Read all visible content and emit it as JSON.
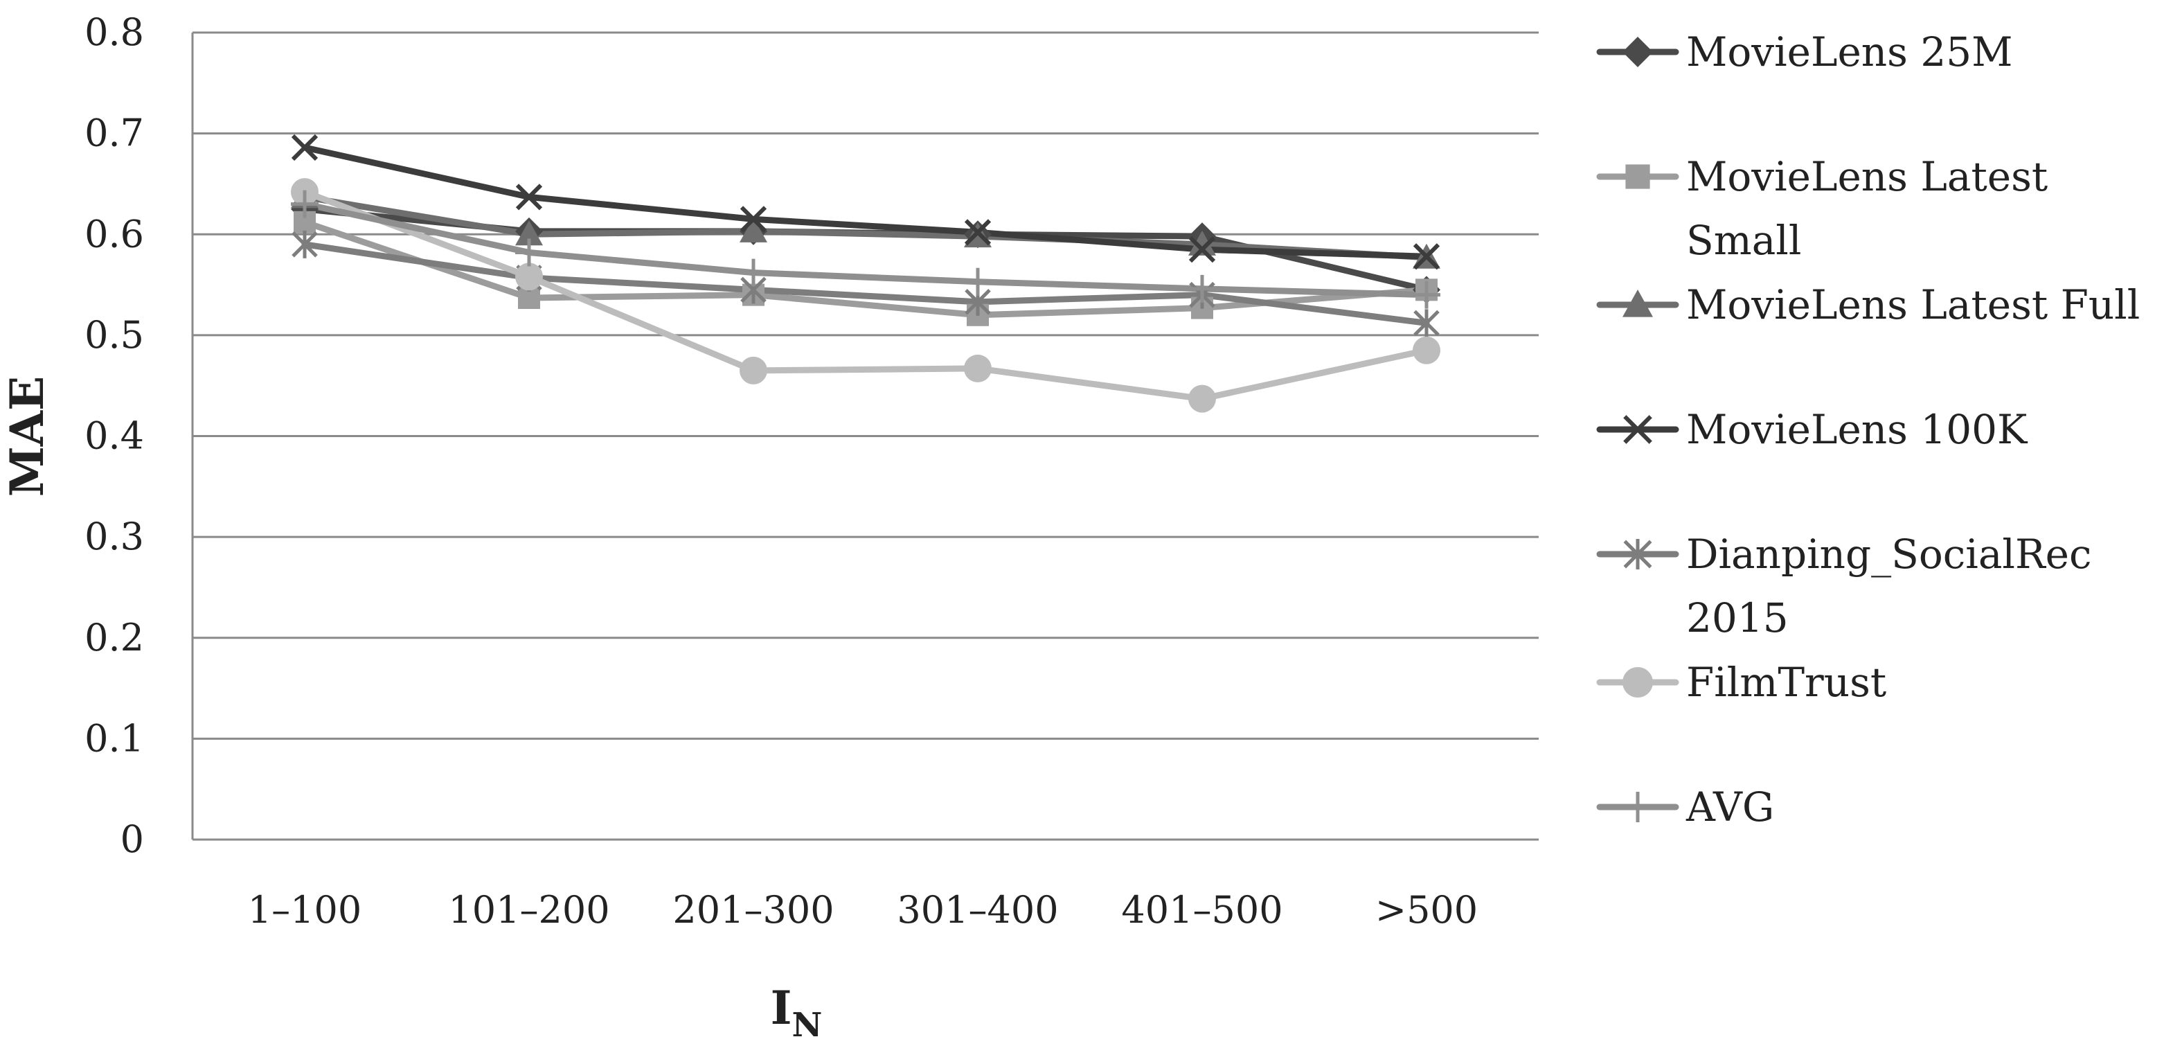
{
  "chart_data": {
    "type": "line",
    "title": "",
    "xlabel": "I",
    "xlabel_subscript": "N",
    "ylabel": "MAE",
    "ylim": [
      0,
      0.8
    ],
    "yticks": [
      "0",
      "0.1",
      "0.2",
      "0.3",
      "0.4",
      "0.5",
      "0.6",
      "0.7",
      "0.8"
    ],
    "categories": [
      "1–100",
      "101–200",
      "201–300",
      "301–400",
      "401–500",
      ">500"
    ],
    "grid": true,
    "legend_position": "right",
    "series": [
      {
        "name": "MovieLens 25M",
        "legend_lines": [
          "MovieLens 25M"
        ],
        "marker": "diamond",
        "color": "#4a4a4a",
        "values": [
          0.625,
          0.603,
          0.603,
          0.6,
          0.598,
          0.545
        ]
      },
      {
        "name": "MovieLens Latest Small",
        "legend_lines": [
          "MovieLens Latest",
          "Small"
        ],
        "marker": "square",
        "color": "#9c9c9c",
        "values": [
          0.612,
          0.537,
          0.54,
          0.52,
          0.527,
          0.545
        ]
      },
      {
        "name": "MovieLens Latest Full",
        "legend_lines": [
          "MovieLens Latest Full"
        ],
        "marker": "triangle",
        "color": "#6e6e6e",
        "values": [
          0.637,
          0.6,
          0.603,
          0.598,
          0.59,
          0.577
        ]
      },
      {
        "name": "MovieLens 100K",
        "legend_lines": [
          "MovieLens 100K"
        ],
        "marker": "x",
        "color": "#3c3c3c",
        "values": [
          0.686,
          0.637,
          0.615,
          0.602,
          0.585,
          0.578
        ]
      },
      {
        "name": "Dianping_SocialRec 2015",
        "legend_lines": [
          "Dianping_SocialRec",
          "2015"
        ],
        "marker": "asterisk",
        "color": "#7d7d7d",
        "values": [
          0.59,
          0.557,
          0.545,
          0.533,
          0.54,
          0.512
        ]
      },
      {
        "name": "FilmTrust",
        "legend_lines": [
          "FilmTrust"
        ],
        "marker": "circle",
        "color": "#bcbcbc",
        "values": [
          0.642,
          0.558,
          0.465,
          0.467,
          0.437,
          0.485
        ]
      },
      {
        "name": "AVG",
        "legend_lines": [
          "AVG"
        ],
        "marker": "plus",
        "color": "#8f8f8f",
        "values": [
          0.63,
          0.582,
          0.562,
          0.553,
          0.546,
          0.54
        ]
      }
    ]
  }
}
